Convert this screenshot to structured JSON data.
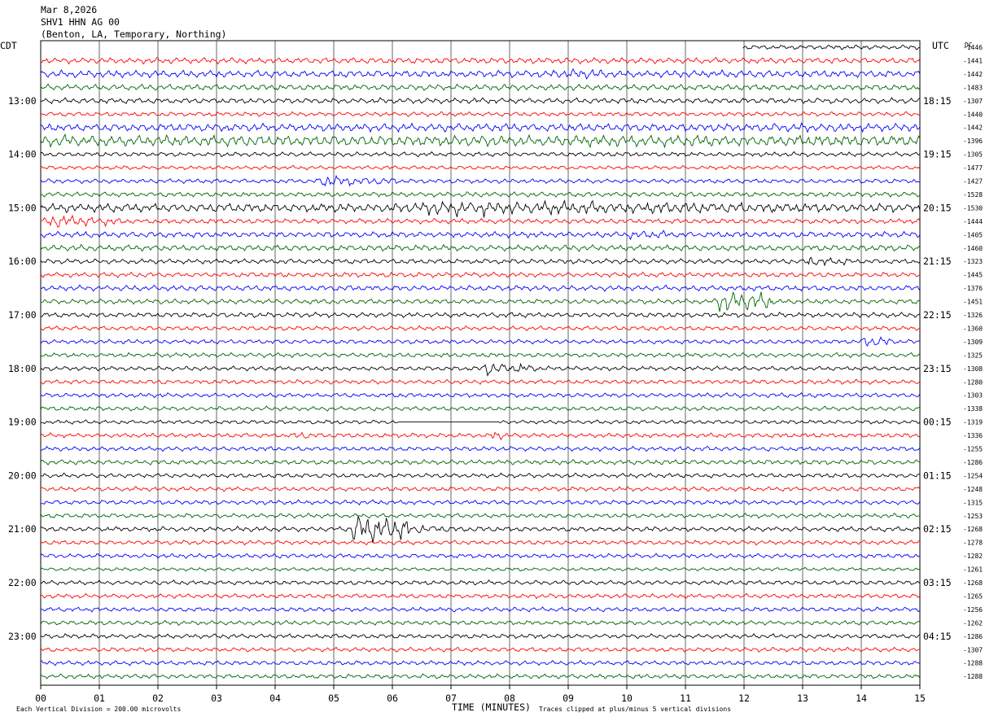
{
  "header": {
    "date": "Mar 8,2026",
    "station": "SHV1 HHN AG 00",
    "location": "(Benton, LA, Temporary, Northing)"
  },
  "labels": {
    "left_tz": "CDT",
    "right_tz": "UTC",
    "right_top": "DC",
    "xlabel": "TIME (MINUTES)",
    "scale_note": "Each Vertical Division =  200.00 microvolts",
    "clip_note": "Traces clipped at plus/minus 5 vertical divisions"
  },
  "colors": {
    "cycle": [
      "#000000",
      "#ff0000",
      "#0000ff",
      "#006400"
    ],
    "grid": "#000000"
  },
  "chart_data": {
    "type": "line",
    "title": "",
    "x_ticks": [
      "00",
      "01",
      "02",
      "03",
      "04",
      "05",
      "06",
      "07",
      "08",
      "09",
      "10",
      "11",
      "12",
      "13",
      "14",
      "15"
    ],
    "xlim": [
      0,
      15
    ],
    "minutes_per_trace": 15,
    "trace_count": 48,
    "left_time_labels": [
      "13:00",
      "14:00",
      "15:00",
      "16:00",
      "17:00",
      "18:00",
      "19:00",
      "20:00",
      "21:00",
      "22:00",
      "23:00"
    ],
    "right_time_labels": [
      "18:15",
      "19:15",
      "20:15",
      "21:15",
      "22:15",
      "23:15",
      "00:15",
      "01:15",
      "02:15",
      "03:15",
      "04:15"
    ],
    "dc_offsets": [
      "-1446",
      "-1441",
      "-1442",
      "-1483",
      "-1307",
      "-1440",
      "-1442",
      "-1396",
      "-1305",
      "-1477",
      "-1427",
      "-1528",
      "-1530",
      "-1444",
      "-1405",
      "-1460",
      "-1323",
      "-1445",
      "-1376",
      "-1451",
      "-1326",
      "-1360",
      "-1309",
      "-1325",
      "-1308",
      "-1280",
      "-1303",
      "-1338",
      "-1319",
      "-1336",
      "-1255",
      "-1286",
      "-1254",
      "-1248",
      "-1315",
      "-1253",
      "-1268",
      "-1278",
      "-1282",
      "-1261",
      "-1268",
      "-1265",
      "-1256",
      "-1262",
      "-1286",
      "-1307",
      "-1288",
      "-1288"
    ],
    "amplitude": [
      0.45,
      0.6,
      0.7,
      0.6,
      0.55,
      0.45,
      0.8,
      1.1,
      0.45,
      0.4,
      0.45,
      0.5,
      0.9,
      0.5,
      0.6,
      0.6,
      0.5,
      0.5,
      0.55,
      0.5,
      0.5,
      0.45,
      0.45,
      0.45,
      0.45,
      0.45,
      0.45,
      0.45,
      0.4,
      0.45,
      0.45,
      0.5,
      0.45,
      0.45,
      0.45,
      0.45,
      0.5,
      0.45,
      0.45,
      0.35,
      0.45,
      0.45,
      0.45,
      0.45,
      0.45,
      0.45,
      0.45,
      0.45
    ],
    "events": [
      {
        "trace": 0,
        "start": 0,
        "end": 11.97,
        "amp": 0,
        "note": "no data before start"
      },
      {
        "trace": 2,
        "start": 8.5,
        "end": 11.5,
        "amp": 1.0
      },
      {
        "trace": 6,
        "start": 12.5,
        "end": 15,
        "amp": 0.9
      },
      {
        "trace": 7,
        "start": 0,
        "end": 2,
        "amp": 1.4
      },
      {
        "trace": 10,
        "start": 4.7,
        "end": 6.1,
        "amp": 1.3
      },
      {
        "trace": 12,
        "start": 6.0,
        "end": 13.5,
        "amp": 1.6
      },
      {
        "trace": 13,
        "start": 0,
        "end": 1.5,
        "amp": 1.3
      },
      {
        "trace": 14,
        "start": 10.0,
        "end": 11.0,
        "amp": 1.1
      },
      {
        "trace": 16,
        "start": 13.0,
        "end": 13.8,
        "amp": 1.2
      },
      {
        "trace": 19,
        "start": 11.5,
        "end": 12.5,
        "amp": 2.6
      },
      {
        "trace": 22,
        "start": 14.0,
        "end": 14.5,
        "amp": 1.5
      },
      {
        "trace": 24,
        "start": 7.5,
        "end": 8.5,
        "amp": 1.3
      },
      {
        "trace": 28,
        "start": 6.1,
        "end": 7.8,
        "amp": 0,
        "note": "flat gap"
      },
      {
        "trace": 29,
        "start": 4.3,
        "end": 4.8,
        "amp": 1.1
      },
      {
        "trace": 29,
        "start": 7.7,
        "end": 7.9,
        "amp": 1.4
      },
      {
        "trace": 36,
        "start": 5.25,
        "end": 6.3,
        "amp": 3.5
      },
      {
        "trace": 36,
        "start": 6.3,
        "end": 7.5,
        "amp": 1.0
      }
    ]
  }
}
